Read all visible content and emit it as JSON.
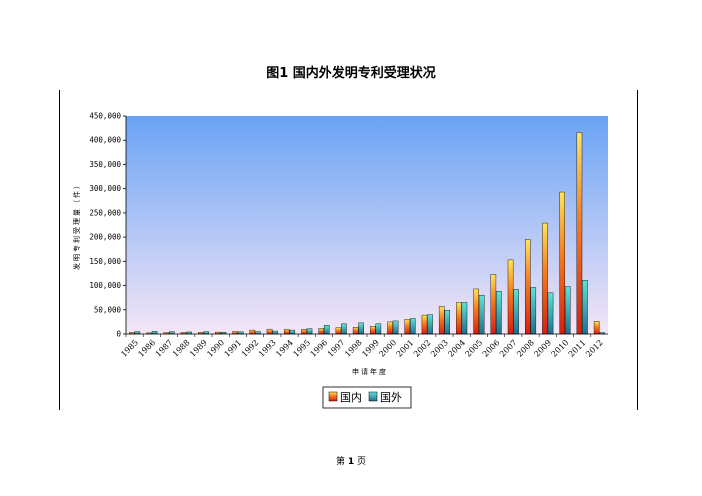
{
  "page": {
    "title": "图1   国内外发明专利受理状况",
    "footer_prefix": "第 ",
    "footer_page": "1",
    "footer_suffix": " 页"
  },
  "colors": {
    "plot_top": "#6aa3f5",
    "plot_bottom": "#f4e6f6",
    "domestic_top": "#ffe45a",
    "domestic_mid": "#f57a1e",
    "domestic_bottom": "#d81e10",
    "foreign_top": "#5fe3d6",
    "foreign_bottom": "#1f6f8f"
  },
  "chart_data": {
    "type": "bar",
    "title": "",
    "xlabel": "申请年度",
    "ylabel": "发明专利受理量（件）",
    "ylim": [
      0,
      450000
    ],
    "yticks": [
      "0",
      "50,000",
      "100,000",
      "150,000",
      "200,000",
      "250,000",
      "300,000",
      "350,000",
      "400,000",
      "450,000"
    ],
    "grid": false,
    "legend": "bottom",
    "categories": [
      "1985",
      "1986",
      "1987",
      "1988",
      "1989",
      "1990",
      "1991",
      "1992",
      "1993",
      "1994",
      "1995",
      "1996",
      "1997",
      "1998",
      "1999",
      "2000",
      "2001",
      "2002",
      "2003",
      "2004",
      "2005",
      "2006",
      "2007",
      "2008",
      "2009",
      "2010",
      "2011",
      "2012"
    ],
    "series": [
      {
        "name": "国内",
        "values": [
          3000,
          2300,
          2800,
          3100,
          3300,
          3900,
          5300,
          8000,
          10000,
          9500,
          9700,
          11500,
          12800,
          14000,
          15800,
          25000,
          30000,
          39000,
          57000,
          65000,
          93000,
          123000,
          153000,
          195000,
          229000,
          293000,
          416000,
          26000
        ]
      },
      {
        "name": "国外",
        "values": [
          5000,
          5500,
          4900,
          4200,
          4700,
          3800,
          4400,
          5000,
          6000,
          8000,
          11000,
          18000,
          21000,
          23000,
          21000,
          27000,
          32000,
          40000,
          49000,
          65000,
          80000,
          88000,
          92000,
          96000,
          85000,
          98000,
          111000,
          3000
        ]
      }
    ]
  }
}
